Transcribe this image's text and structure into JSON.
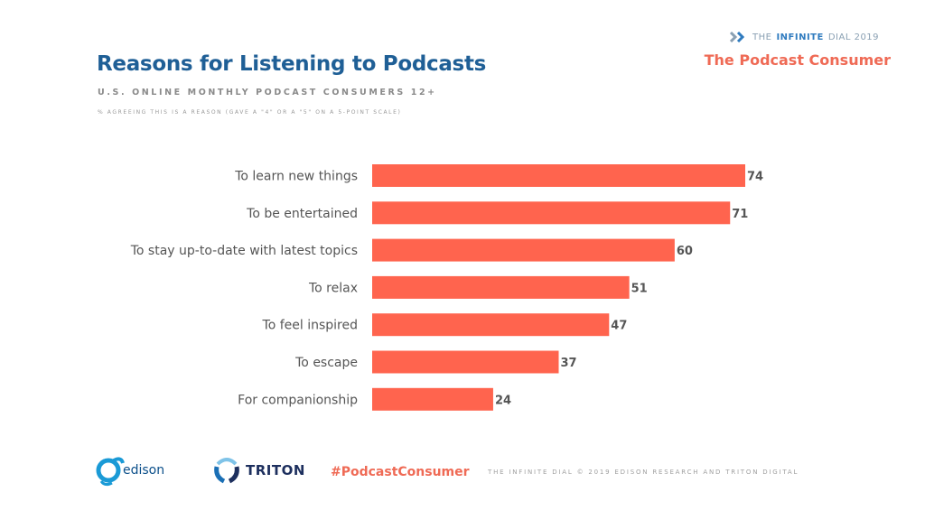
{
  "header": {
    "title": "Reasons for Listening to Podcasts",
    "subtitle": "U.S. ONLINE MONTHLY PODCAST CONSUMERS 12+",
    "note": "% AGREEING THIS IS A REASON  (GAVE A \"4\" OR A \"5\" ON A 5-POINT SCALE)",
    "brand_prefix": "THE",
    "brand_name": "INFINITE",
    "brand_suffix": "DIAL 2019",
    "section": "The Podcast Consumer"
  },
  "chart_data": {
    "type": "bar",
    "orientation": "horizontal",
    "title": "Reasons for Listening to Podcasts",
    "subtitle": "U.S. ONLINE MONTHLY PODCAST CONSUMERS 12+",
    "xlabel": "",
    "ylabel": "",
    "xlim": [
      0,
      74
    ],
    "grid": false,
    "categories": [
      "To learn new things",
      "To be entertained",
      "To stay up-to-date with latest topics",
      "To relax",
      "To feel inspired",
      "To escape",
      "For companionship"
    ],
    "values": [
      74,
      71,
      60,
      51,
      47,
      37,
      24
    ],
    "unit": "%",
    "bar_color": "#ff644e"
  },
  "footer": {
    "edison_logo": "edison",
    "triton_logo": "TRITON",
    "hashtag": "#PodcastConsumer",
    "credit": "THE INFINITE DIAL   © 2019 EDISON RESEARCH AND TRITON DIGITAL"
  },
  "colors": {
    "title": "#1f5f96",
    "accent": "#ef6a55",
    "bar": "#ff644e",
    "text": "#555555"
  }
}
